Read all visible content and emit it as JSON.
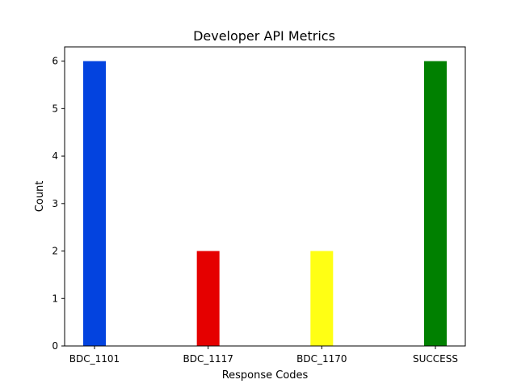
{
  "chart_data": {
    "type": "bar",
    "title": "Developer API Metrics",
    "xlabel": "Response Codes",
    "ylabel": "Count",
    "categories": [
      "BDC_1101",
      "BDC_1117",
      "BDC_1170",
      "SUCCESS"
    ],
    "values": [
      6,
      2,
      2,
      6
    ],
    "colors": [
      "#0343df",
      "#e50000",
      "#ffff14",
      "#008000"
    ],
    "ylim": [
      0,
      6.3
    ],
    "yticks": [
      0,
      1,
      2,
      3,
      4,
      5,
      6
    ],
    "grid": false,
    "legend": "none"
  }
}
